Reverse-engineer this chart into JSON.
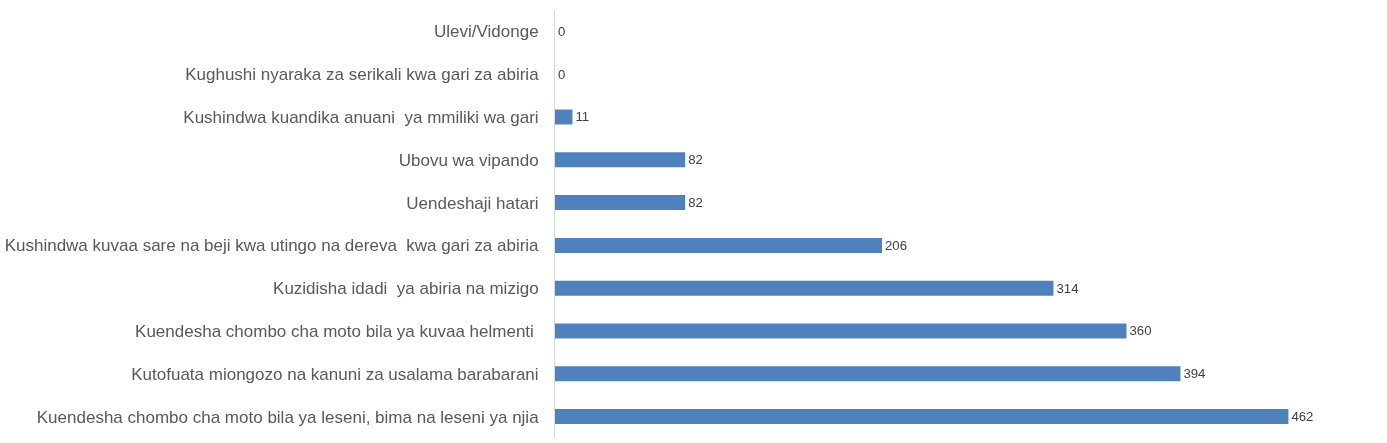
{
  "chart_data": {
    "type": "bar",
    "orientation": "horizontal",
    "data_labels": true,
    "legend": false,
    "color": "#4f81bd",
    "categories": [
      "Ulevi/Vidonge",
      "Kughushi nyaraka za serikali kwa gari za abiria",
      "Kushindwa kuandika anuani  ya mmiliki wa gari",
      "Ubovu wa vipando",
      "Uendeshaji hatari",
      "Kushindwa kuvaa sare na beji kwa utingo na dereva  kwa gari za abiria",
      "Kuzidisha idadi  ya abiria na mizigo",
      "Kuendesha chombo cha moto bila ya kuvaa helmenti ",
      "Kutofuata miongozo na kanuni za usalama barabarani",
      "Kuendesha chombo cha moto bila ya leseni, bima na leseni ya njia"
    ],
    "values": [
      0,
      0,
      11,
      82,
      82,
      206,
      314,
      360,
      394,
      462
    ]
  }
}
